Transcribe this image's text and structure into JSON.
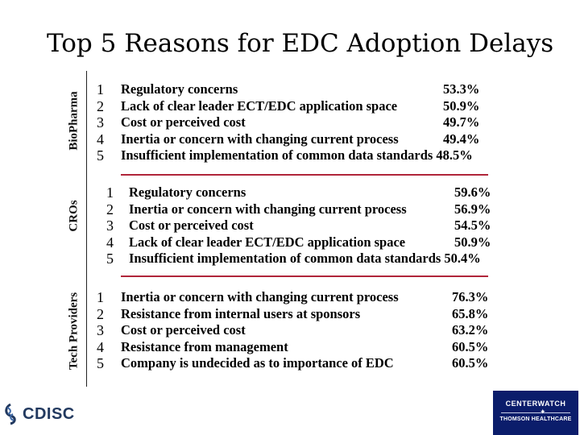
{
  "title": "Top 5 Reasons for EDC Adoption Delays",
  "sections": [
    {
      "label": "BioPharma",
      "rows": [
        {
          "num": "1",
          "reason": "Regulatory concerns",
          "pct": "53.3%"
        },
        {
          "num": "2",
          "reason": "Lack of clear leader ECT/EDC application space",
          "pct": "50.9%"
        },
        {
          "num": "3",
          "reason": "Cost or perceived cost",
          "pct": "49.7%"
        },
        {
          "num": "4",
          "reason": "Inertia or concern with changing current process",
          "pct": "49.4%"
        },
        {
          "num": "5",
          "reason": "Insufficient implementation of common data standards",
          "pct": "48.5%"
        }
      ]
    },
    {
      "label": "CROs",
      "rows": [
        {
          "num": "1",
          "reason": "Regulatory concerns",
          "pct": "59.6%"
        },
        {
          "num": "2",
          "reason": "Inertia or concern with changing current process",
          "pct": "56.9%"
        },
        {
          "num": "3",
          "reason": "Cost or perceived cost",
          "pct": "54.5%"
        },
        {
          "num": "4",
          "reason": "Lack of clear leader ECT/EDC application space",
          "pct": "50.9%"
        },
        {
          "num": "5",
          "reason": "Insufficient implementation of common data standards",
          "pct": "50.4%"
        }
      ]
    },
    {
      "label": "Tech Providers",
      "rows": [
        {
          "num": "1",
          "reason": "Inertia or concern with changing current process",
          "pct": "76.3%"
        },
        {
          "num": "2",
          "reason": "Resistance from internal users at sponsors",
          "pct": "65.8%"
        },
        {
          "num": "3",
          "reason": "Cost or perceived cost",
          "pct": "63.2%"
        },
        {
          "num": "4",
          "reason": "Resistance from management",
          "pct": "60.5%"
        },
        {
          "num": "5",
          "reason": "Company is undecided as to importance of EDC",
          "pct": "60.5%"
        }
      ]
    }
  ],
  "logos": {
    "left_text": "CDISC",
    "left_icon": "cdisc-swirl-icon",
    "right_line1": "CENTERWATCH",
    "right_line2": "THOMSON HEALTHCARE",
    "right_icon": "star-icon"
  },
  "colors": {
    "divider": "#b0253a",
    "cdisc_blue": "#22395f",
    "centerwatch_bg": "#0b1d6b"
  }
}
